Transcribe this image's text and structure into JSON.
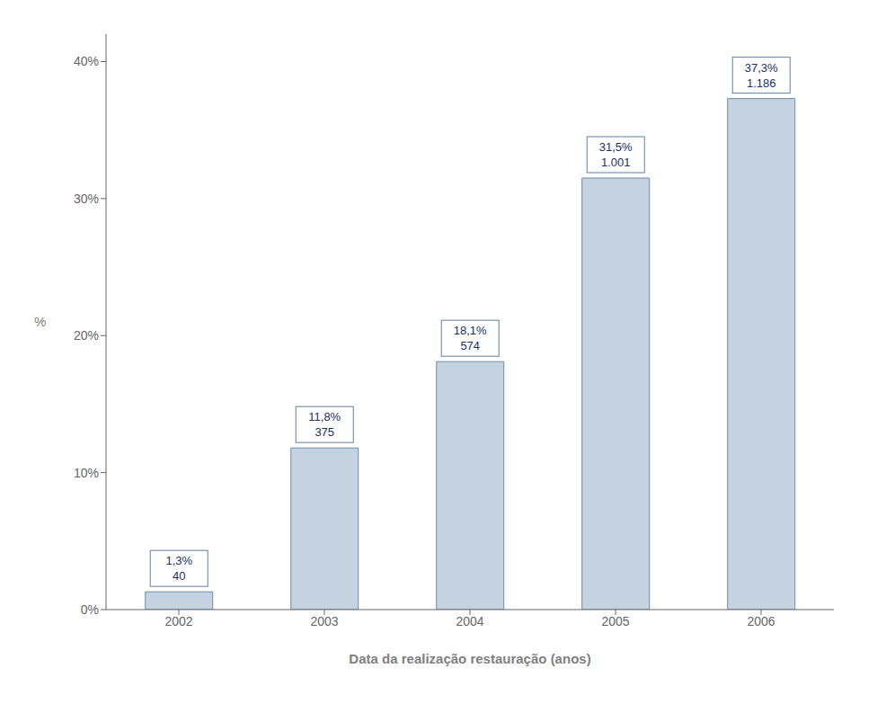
{
  "chart_data": {
    "type": "bar",
    "categories": [
      "2002",
      "2003",
      "2004",
      "2005",
      "2006"
    ],
    "values": [
      1.3,
      11.8,
      18.1,
      31.5,
      37.3
    ],
    "value_labels": [
      "1,3%",
      "11,8%",
      "18,1%",
      "31,5%",
      "37,3%"
    ],
    "counts": [
      40,
      375,
      574,
      1001,
      1186
    ],
    "count_labels": [
      "40",
      "375",
      "574",
      "1.001",
      "1.186"
    ],
    "color": "#c5d3e0",
    "xlabel": "Data da realização restauração  (anos)",
    "ylabel": "%",
    "ylim": [
      0,
      42
    ],
    "yticks": [
      {
        "value": 0,
        "label": "0%"
      },
      {
        "value": 10,
        "label": "10%"
      },
      {
        "value": 20,
        "label": "20%"
      },
      {
        "value": 30,
        "label": "30%"
      },
      {
        "value": 40,
        "label": "40%"
      }
    ],
    "grid": false,
    "data_labels": true
  }
}
